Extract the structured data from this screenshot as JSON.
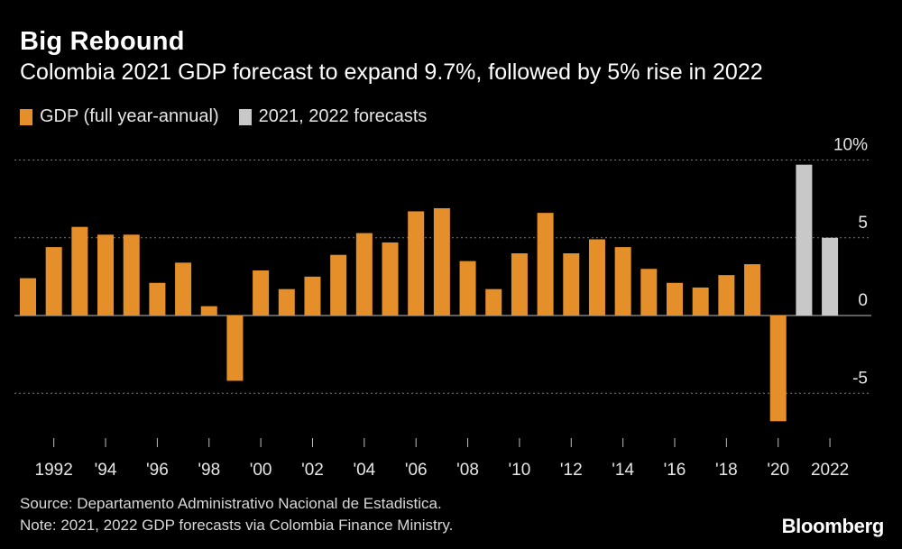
{
  "header": {
    "title": "Big Rebound",
    "subtitle": "Colombia 2021 GDP forecast to expand 9.7%, followed by 5% rise in 2022"
  },
  "legend": [
    {
      "label": "GDP (full year-annual)",
      "color": "#e58f2a"
    },
    {
      "label": "2021, 2022 forecasts",
      "color": "#c8c8c8"
    }
  ],
  "footer": {
    "source": "Source: Departamento Administrativo Nacional de Estadistica.",
    "note": "Note: 2021, 2022 GDP forecasts via Colombia Finance Ministry.",
    "brand": "Bloomberg"
  },
  "chart_data": {
    "type": "bar",
    "title": "Big Rebound",
    "subtitle": "Colombia 2021 GDP forecast to expand 9.7%, followed by 5% rise in 2022",
    "categories": [
      "1991",
      "1992",
      "1993",
      "1994",
      "1995",
      "1996",
      "1997",
      "1998",
      "1999",
      "2000",
      "2001",
      "2002",
      "2003",
      "2004",
      "2005",
      "2006",
      "2007",
      "2008",
      "2009",
      "2010",
      "2011",
      "2012",
      "2013",
      "2014",
      "2015",
      "2016",
      "2017",
      "2018",
      "2019",
      "2020",
      "2021",
      "2022"
    ],
    "series": [
      {
        "name": "GDP (full year-annual)",
        "color": "#e58f2a",
        "values": [
          2.4,
          4.4,
          5.7,
          5.2,
          5.2,
          2.1,
          3.4,
          0.6,
          -4.2,
          2.9,
          1.7,
          2.5,
          3.9,
          5.3,
          4.7,
          6.7,
          6.9,
          3.5,
          1.7,
          4.0,
          6.6,
          4.0,
          4.9,
          4.4,
          3.0,
          2.1,
          1.8,
          2.6,
          3.3,
          -6.8,
          null,
          null
        ]
      },
      {
        "name": "2021, 2022 forecasts",
        "color": "#c8c8c8",
        "values": [
          null,
          null,
          null,
          null,
          null,
          null,
          null,
          null,
          null,
          null,
          null,
          null,
          null,
          null,
          null,
          null,
          null,
          null,
          null,
          null,
          null,
          null,
          null,
          null,
          null,
          null,
          null,
          null,
          null,
          null,
          9.7,
          5.0
        ]
      }
    ],
    "y_ticks": [
      10,
      5,
      0,
      -5
    ],
    "y_tick_labels": [
      "10%",
      "5",
      "0",
      "-5"
    ],
    "x_tick_labels": [
      {
        "year": "1992",
        "label": "1992"
      },
      {
        "year": "1994",
        "label": "'94"
      },
      {
        "year": "1996",
        "label": "'96"
      },
      {
        "year": "1998",
        "label": "'98"
      },
      {
        "year": "2000",
        "label": "'00"
      },
      {
        "year": "2002",
        "label": "'02"
      },
      {
        "year": "2004",
        "label": "'04"
      },
      {
        "year": "2006",
        "label": "'06"
      },
      {
        "year": "2008",
        "label": "'08"
      },
      {
        "year": "2010",
        "label": "'10"
      },
      {
        "year": "2012",
        "label": "'12"
      },
      {
        "year": "2014",
        "label": "'14"
      },
      {
        "year": "2016",
        "label": "'16"
      },
      {
        "year": "2018",
        "label": "'18"
      },
      {
        "year": "2020",
        "label": "'20"
      },
      {
        "year": "2022",
        "label": "2022"
      }
    ],
    "ylim": [
      -7,
      10
    ],
    "grid": true,
    "legend_position": "top-left"
  }
}
